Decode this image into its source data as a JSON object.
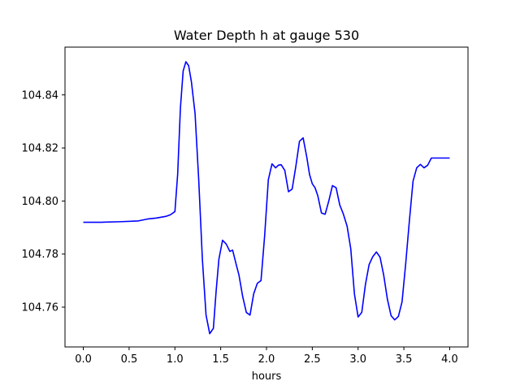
{
  "chart_data": {
    "type": "line",
    "title": "Water Depth h at gauge 530",
    "xlabel": "hours",
    "ylabel": "",
    "xlim": [
      -0.2,
      4.2
    ],
    "ylim": [
      104.745,
      104.858
    ],
    "xticks": [
      0.0,
      0.5,
      1.0,
      1.5,
      2.0,
      2.5,
      3.0,
      3.5,
      4.0
    ],
    "xtick_labels": [
      "0.0",
      "0.5",
      "1.0",
      "1.5",
      "2.0",
      "2.5",
      "3.0",
      "3.5",
      "4.0"
    ],
    "yticks": [
      104.76,
      104.78,
      104.8,
      104.82,
      104.84
    ],
    "ytick_labels": [
      "104.76",
      "104.78",
      "104.80",
      "104.82",
      "104.84"
    ],
    "grid": false,
    "series": [
      {
        "color": "#0000ff",
        "x": [
          0.0,
          0.2,
          0.4,
          0.6,
          0.7,
          0.8,
          0.9,
          0.95,
          1.0,
          1.03,
          1.06,
          1.09,
          1.12,
          1.15,
          1.18,
          1.22,
          1.26,
          1.3,
          1.34,
          1.38,
          1.42,
          1.45,
          1.48,
          1.52,
          1.56,
          1.6,
          1.63,
          1.67,
          1.7,
          1.74,
          1.78,
          1.82,
          1.86,
          1.9,
          1.94,
          1.98,
          2.02,
          2.06,
          2.1,
          2.13,
          2.16,
          2.2,
          2.24,
          2.28,
          2.32,
          2.36,
          2.4,
          2.44,
          2.47,
          2.5,
          2.53,
          2.56,
          2.6,
          2.64,
          2.68,
          2.72,
          2.76,
          2.8,
          2.84,
          2.88,
          2.92,
          2.96,
          3.0,
          3.04,
          3.08,
          3.12,
          3.16,
          3.2,
          3.24,
          3.28,
          3.32,
          3.36,
          3.4,
          3.44,
          3.48,
          3.52,
          3.56,
          3.6,
          3.64,
          3.68,
          3.72,
          3.76,
          3.8,
          3.84,
          3.88,
          3.92,
          3.96,
          4.0
        ],
        "y": [
          104.792,
          104.792,
          104.7922,
          104.7925,
          104.7932,
          104.7936,
          104.7942,
          104.7948,
          104.796,
          104.81,
          104.835,
          104.849,
          104.8525,
          104.851,
          104.845,
          104.833,
          104.808,
          104.778,
          104.757,
          104.75,
          104.752,
          104.766,
          104.778,
          104.7852,
          104.7838,
          104.781,
          104.7815,
          104.776,
          104.772,
          104.764,
          104.758,
          104.757,
          104.765,
          104.769,
          104.77,
          104.787,
          104.808,
          104.814,
          104.8125,
          104.8135,
          104.8137,
          104.8115,
          104.8035,
          104.8045,
          104.813,
          104.8225,
          104.8238,
          104.8165,
          104.81,
          104.8065,
          104.805,
          104.802,
          104.7955,
          104.795,
          104.8,
          104.8058,
          104.805,
          104.7985,
          104.795,
          104.7905,
          104.782,
          104.765,
          104.7563,
          104.758,
          104.7685,
          104.776,
          104.779,
          104.7808,
          104.7788,
          104.772,
          104.763,
          104.7568,
          104.7552,
          104.7565,
          104.762,
          104.7765,
          104.7925,
          104.8075,
          104.8125,
          104.8138,
          104.8125,
          104.8135,
          104.8162,
          104.8162,
          104.8162,
          104.8162,
          104.8162,
          104.8162
        ]
      }
    ]
  }
}
